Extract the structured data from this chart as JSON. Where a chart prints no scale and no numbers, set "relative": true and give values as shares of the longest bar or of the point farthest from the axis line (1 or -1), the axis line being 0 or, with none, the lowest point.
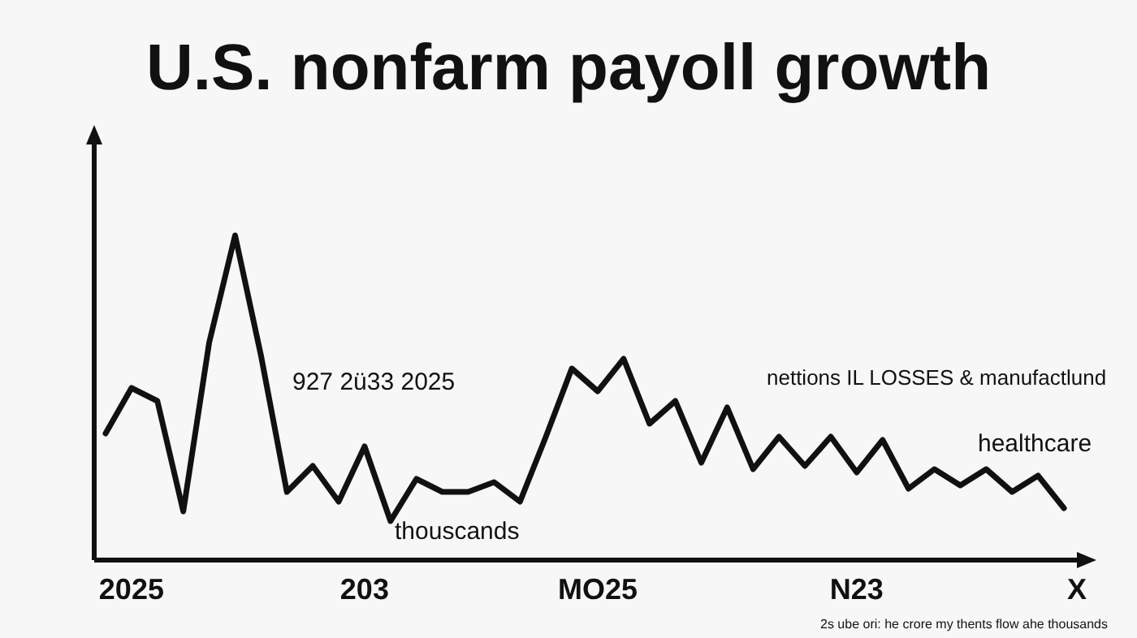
{
  "chart_data": {
    "type": "line",
    "title": "U.S. nonfarm payoll growth",
    "xlabel": "X",
    "relative": true,
    "categories": [
      null,
      "2025",
      null,
      null,
      null,
      null,
      null,
      null,
      null,
      null,
      "203",
      null,
      null,
      null,
      null,
      null,
      null,
      null,
      null,
      "MO25",
      null,
      null,
      null,
      null,
      null,
      null,
      null,
      null,
      null,
      "N23",
      null,
      null,
      null,
      null,
      null,
      null,
      null,
      null
    ],
    "series": [
      {
        "color": "#111111",
        "values": [
          0.39,
          0.53,
          0.49,
          0.15,
          0.67,
          1.0,
          0.63,
          0.21,
          0.29,
          0.18,
          0.35,
          0.12,
          0.25,
          0.21,
          0.21,
          0.24,
          0.18,
          0.38,
          0.59,
          0.52,
          0.62,
          0.42,
          0.49,
          0.3,
          0.47,
          0.28,
          0.38,
          0.29,
          0.38,
          0.27,
          0.37,
          0.22,
          0.28,
          0.23,
          0.28,
          0.21,
          0.26,
          0.16
        ]
      }
    ],
    "annotations": [
      "927 2ü33 2025",
      "thouscands",
      "nettions IL LOSSES & manufactlund",
      "healthcare",
      "2s ube ori: he crore my thents flow ahe thousands"
    ],
    "marker": "none",
    "line_style": "solid"
  }
}
